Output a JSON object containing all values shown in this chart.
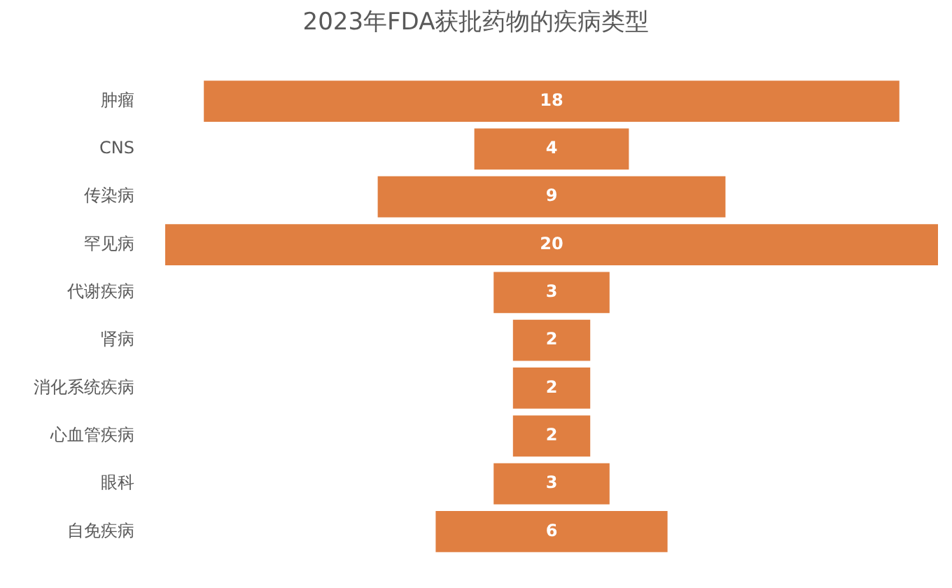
{
  "chart_data": {
    "type": "other",
    "title": "2023年FDA获批药物的疾病类型",
    "categories": [
      "肿瘤",
      "CNS",
      "传染病",
      "罕见病",
      "代谢疾病",
      "肾病",
      "消化系统疾病",
      "心血管疾病",
      "眼科",
      "自免疾病"
    ],
    "values": [
      18,
      4,
      9,
      20,
      3,
      2,
      2,
      2,
      3,
      6
    ],
    "color": "#e07f41",
    "data_labels": true
  }
}
